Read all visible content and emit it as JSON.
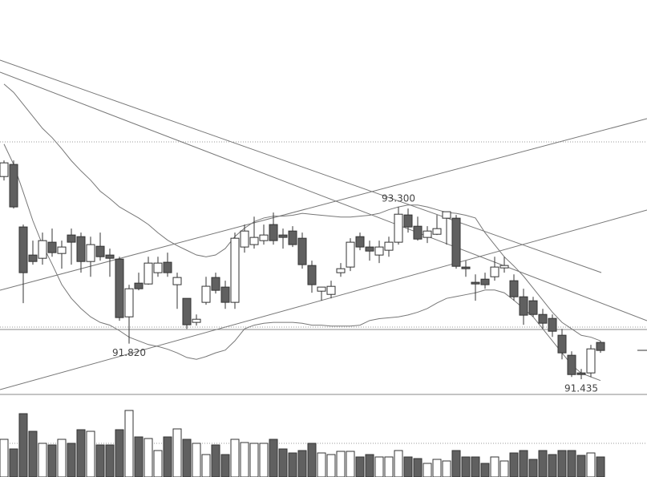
{
  "chart_data": {
    "type": "candlestick",
    "open": [
      93.629,
      93.76,
      93.083,
      92.779,
      92.744,
      92.918,
      92.796,
      92.996,
      92.978,
      92.709,
      92.874,
      92.779,
      92.735,
      92.11,
      92.475,
      92.466,
      92.588,
      92.701,
      92.458,
      92.31,
      92.05,
      92.267,
      92.536,
      92.432,
      92.267,
      92.866,
      92.892,
      92.935,
      93.109,
      92.996,
      93.039,
      92.961,
      92.666,
      92.388,
      92.353,
      92.588,
      92.649,
      92.978,
      92.866,
      92.779,
      92.831,
      92.918,
      93.213,
      93.091,
      92.97,
      93.004,
      93.178,
      93.178,
      92.649,
      92.484,
      92.518,
      92.544,
      92.64,
      92.501,
      92.327,
      92.284,
      92.136,
      92.093,
      91.911,
      91.694,
      91.503,
      91.503,
      91.833
    ],
    "high": [
      93.803,
      93.803,
      93.109,
      92.935,
      93.022,
      93.065,
      92.935,
      93.065,
      93.022,
      92.978,
      93.022,
      92.848,
      92.761,
      92.457,
      92.588,
      92.761,
      92.761,
      92.805,
      92.588,
      92.31,
      92.136,
      92.544,
      92.588,
      92.501,
      93.022,
      93.109,
      93.195,
      93.109,
      93.239,
      93.065,
      93.091,
      93.022,
      92.718,
      92.432,
      92.501,
      92.692,
      92.961,
      93.022,
      92.935,
      92.935,
      92.978,
      93.3,
      93.282,
      93.195,
      93.091,
      93.213,
      93.239,
      93.213,
      92.718,
      92.57,
      92.588,
      92.761,
      92.761,
      92.57,
      92.414,
      92.327,
      92.197,
      92.136,
      91.98,
      91.737,
      91.546,
      91.807,
      91.85
    ],
    "low": [
      93.586,
      93.282,
      92.258,
      92.675,
      92.675,
      92.761,
      92.631,
      92.675,
      92.588,
      92.544,
      92.718,
      92.544,
      92.067,
      91.82,
      92.397,
      92.458,
      92.544,
      92.544,
      92.197,
      91.98,
      92.015,
      92.241,
      92.362,
      92.197,
      92.197,
      92.805,
      92.848,
      92.892,
      92.892,
      92.848,
      92.866,
      92.631,
      92.371,
      92.284,
      92.31,
      92.544,
      92.605,
      92.831,
      92.718,
      92.692,
      92.761,
      92.892,
      93.022,
      92.935,
      92.909,
      92.996,
      92.892,
      92.631,
      92.544,
      92.284,
      92.414,
      92.501,
      92.588,
      92.284,
      92.024,
      92.11,
      91.98,
      91.893,
      91.65,
      91.459,
      91.435,
      91.459,
      91.72
    ],
    "close": [
      93.777,
      93.3,
      92.588,
      92.709,
      92.935,
      92.805,
      92.866,
      92.918,
      92.709,
      92.892,
      92.761,
      92.744,
      92.102,
      92.414,
      92.414,
      92.692,
      92.692,
      92.588,
      92.536,
      92.024,
      92.084,
      92.441,
      92.397,
      92.267,
      92.961,
      93.039,
      92.97,
      92.996,
      92.935,
      92.97,
      92.892,
      92.675,
      92.458,
      92.432,
      92.44,
      92.631,
      92.918,
      92.866,
      92.822,
      92.866,
      92.918,
      93.221,
      93.083,
      92.952,
      93.039,
      93.065,
      93.248,
      92.657,
      92.631,
      92.466,
      92.458,
      92.649,
      92.666,
      92.327,
      92.128,
      92.136,
      92.041,
      91.954,
      91.72,
      91.485,
      91.485,
      91.763,
      91.746
    ],
    "volume": [
      47,
      35,
      79,
      57,
      42,
      40,
      47,
      42,
      59,
      57,
      40,
      40,
      59,
      83,
      50,
      48,
      33,
      50,
      60,
      47,
      42,
      28,
      40,
      28,
      47,
      43,
      42,
      42,
      47,
      35,
      30,
      33,
      42,
      30,
      28,
      32,
      32,
      25,
      28,
      25,
      25,
      33,
      25,
      23,
      17,
      22,
      20,
      33,
      25,
      25,
      17,
      25,
      20,
      30,
      33,
      22,
      33,
      28,
      33,
      33,
      27,
      30,
      25
    ],
    "lines": [
      {
        "color": "#777777",
        "values": [
          94.63,
          94.54,
          94.41,
          94.28,
          94.15,
          94.05,
          93.93,
          93.8,
          93.69,
          93.59,
          93.47,
          93.39,
          93.3,
          93.24,
          93.18,
          93.11,
          93.02,
          92.94,
          92.88,
          92.83,
          92.78,
          92.76,
          92.78,
          92.85,
          92.98,
          93.07,
          93.14,
          93.18,
          93.2,
          93.2,
          93.21,
          93.23,
          93.22,
          93.21,
          93.2,
          93.19,
          93.19,
          93.2,
          93.21,
          93.23,
          93.27,
          93.3,
          93.32,
          93.32,
          93.3,
          93.27,
          93.24,
          93.23,
          93.21,
          93.18,
          93.02,
          92.89,
          92.76,
          92.66,
          92.55,
          92.42,
          92.29,
          92.16,
          92.05,
          91.98,
          91.91,
          91.89,
          91.85
        ]
      },
      {
        "color": "#777777",
        "values": [
          93.98,
          93.76,
          93.46,
          93.15,
          92.89,
          92.68,
          92.46,
          92.31,
          92.2,
          92.11,
          92.05,
          92.02,
          91.96,
          91.89,
          91.85,
          91.81,
          91.79,
          91.76,
          91.72,
          91.67,
          91.65,
          91.68,
          91.72,
          91.75,
          91.85,
          91.98,
          92.02,
          92.04,
          92.05,
          92.05,
          92.05,
          92.04,
          92.02,
          92.02,
          92.01,
          92.01,
          92.01,
          92.02,
          92.07,
          92.09,
          92.1,
          92.11,
          92.13,
          92.16,
          92.2,
          92.26,
          92.31,
          92.33,
          92.35,
          92.37,
          92.4,
          92.4,
          92.37,
          92.29,
          92.2,
          92.11,
          91.98,
          91.85,
          91.72,
          91.59,
          91.5,
          91.46,
          91.42
        ]
      }
    ],
    "annotations": [
      {
        "label": "93.300",
        "value": 93.3
      },
      {
        "label": "91.820",
        "value": 91.82
      },
      {
        "label": "91.435",
        "value": 91.435
      }
    ],
    "up_color": "#ffffff",
    "down_color": "#606060",
    "edge_color": "#333333",
    "ylim": [
      91.27,
      95.54
    ],
    "volume_lim": [
      0,
      103
    ]
  }
}
